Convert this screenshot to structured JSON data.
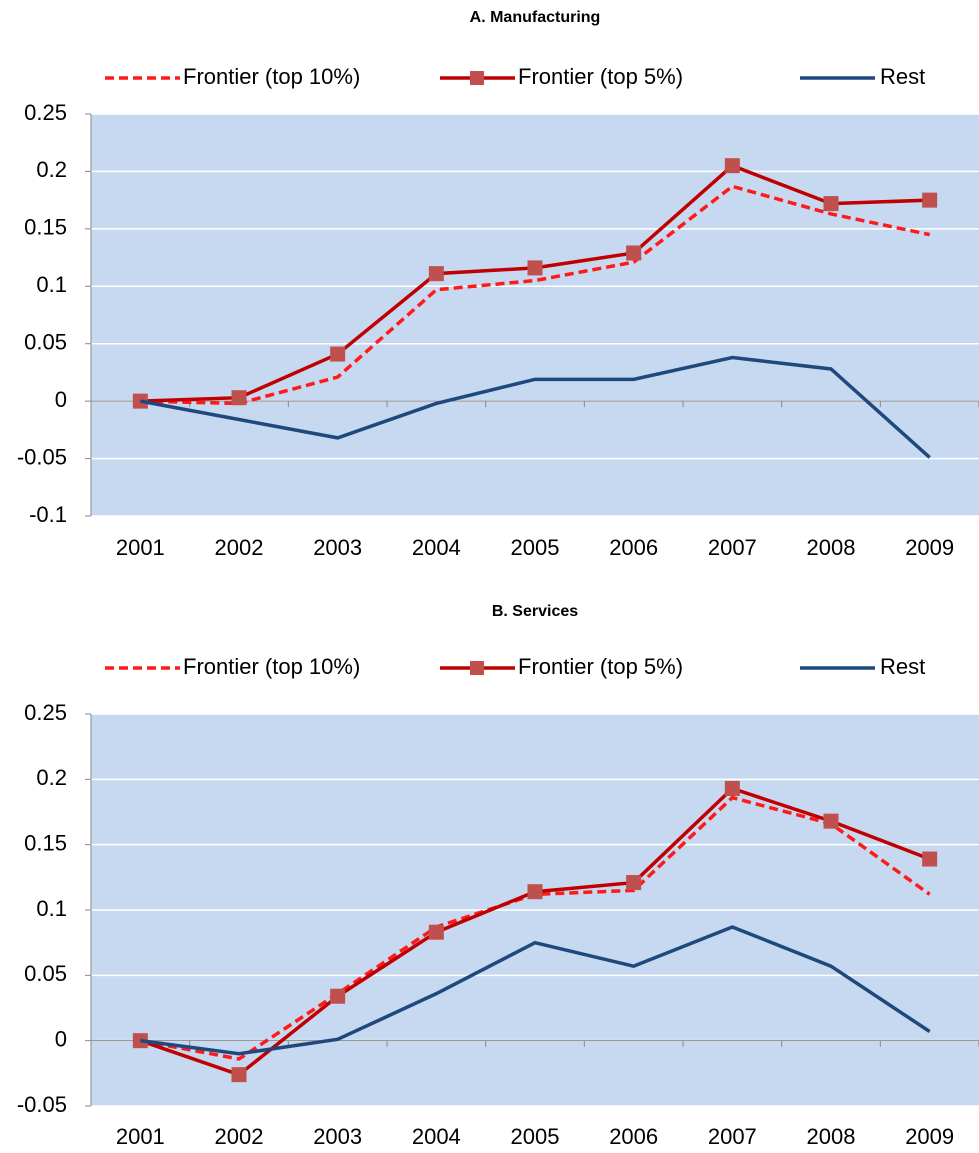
{
  "chart_data": [
    {
      "type": "line",
      "title": "A. Manufacturing",
      "categories": [
        "2001",
        "2002",
        "2003",
        "2004",
        "2005",
        "2006",
        "2007",
        "2008",
        "2009"
      ],
      "series": [
        {
          "name": "Frontier (top 10%)",
          "color": "#ff1a1a",
          "line_style": "dashed",
          "values": [
            0,
            -0.002,
            0.021,
            0.097,
            0.105,
            0.121,
            0.187,
            0.163,
            0.145
          ]
        },
        {
          "name": "Frontier (top 5%)",
          "color": "#c00000",
          "marker": "square",
          "marker_color": "#c0504d",
          "values": [
            0,
            0.003,
            0.041,
            0.111,
            0.116,
            0.129,
            0.205,
            0.172,
            0.175
          ]
        },
        {
          "name": "Rest",
          "color": "#1f497d",
          "values": [
            0,
            -0.016,
            -0.032,
            -0.002,
            0.019,
            0.019,
            0.038,
            0.028,
            -0.049
          ]
        }
      ],
      "ylim": [
        -0.1,
        0.25
      ],
      "yticks": [
        -0.1,
        -0.05,
        0,
        0.05,
        0.1,
        0.15,
        0.2,
        0.25
      ],
      "grid": true,
      "legend": "top"
    },
    {
      "type": "line",
      "title": "B. Services",
      "categories": [
        "2001",
        "2002",
        "2003",
        "2004",
        "2005",
        "2006",
        "2007",
        "2008",
        "2009"
      ],
      "series": [
        {
          "name": "Frontier (top 10%)",
          "color": "#ff1a1a",
          "line_style": "dashed",
          "values": [
            0,
            -0.014,
            0.036,
            0.087,
            0.112,
            0.115,
            0.186,
            0.166,
            0.112
          ]
        },
        {
          "name": "Frontier (top 5%)",
          "color": "#c00000",
          "marker": "square",
          "marker_color": "#c0504d",
          "values": [
            0,
            -0.026,
            0.034,
            0.083,
            0.114,
            0.121,
            0.193,
            0.168,
            0.139
          ]
        },
        {
          "name": "Rest",
          "color": "#1f497d",
          "values": [
            0,
            -0.01,
            0.001,
            0.036,
            0.075,
            0.057,
            0.087,
            0.057,
            0.007
          ]
        }
      ],
      "ylim": [
        -0.05,
        0.25
      ],
      "yticks": [
        -0.05,
        0,
        0.05,
        0.1,
        0.15,
        0.2,
        0.25
      ],
      "grid": true,
      "legend": "top"
    }
  ]
}
